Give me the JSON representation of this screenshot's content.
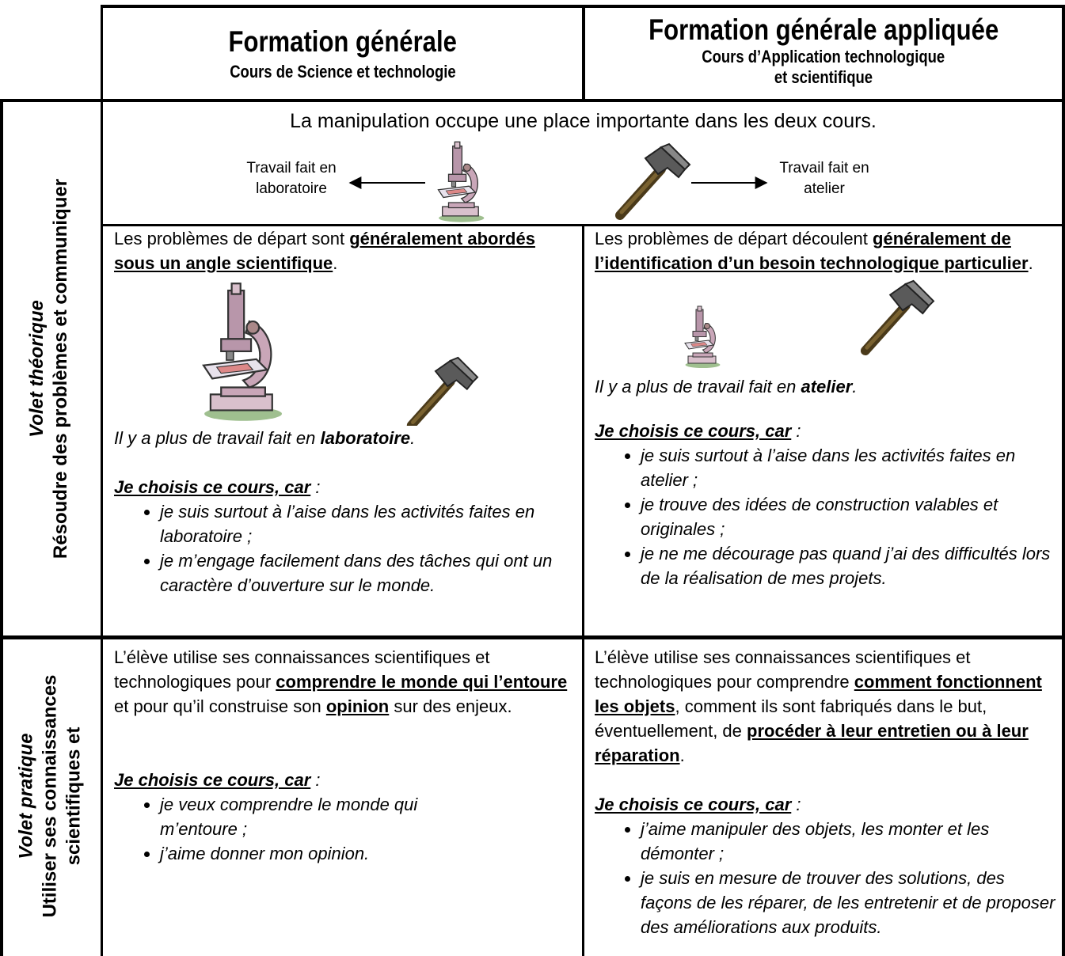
{
  "header": {
    "general": {
      "title": "Formation générale",
      "subtitle": "Cours de Science et technologie"
    },
    "applied": {
      "title": "Formation générale appliquée",
      "subtitle": [
        "Cours d’Application technologique",
        "et scientifique"
      ]
    }
  },
  "theory": {
    "label": {
      "title": "Volet théorique",
      "text": "Résoudre des problèmes et communiquer"
    },
    "banner": "La manipulation occupe une place importante dans les deux cours.",
    "lab_caption": [
      "Travail fait en",
      "laboratoire"
    ],
    "workshop_caption": [
      "Travail fait en",
      "atelier"
    ],
    "general": {
      "intro": [
        "Les problèmes de départ sont ",
        "généralement abordés sous un angle scientifique",
        "."
      ],
      "note": [
        "Il y a plus de travail fait en ",
        "laboratoire",
        "."
      ],
      "choice": [
        "Je choisis ce cours, car",
        " :"
      ],
      "bullets": [
        "je suis surtout à l’aise dans les activités faites en laboratoire ;",
        "je m’engage facilement dans des tâches qui ont un caractère d’ouverture sur le monde."
      ]
    },
    "applied": {
      "intro": [
        "Les problèmes de départ découlent ",
        "généralement de l’identification d’un besoin technologique particulier",
        "."
      ],
      "note": [
        "Il y a plus de travail fait en ",
        "atelier",
        "."
      ],
      "choice": [
        "Je choisis ce cours, car",
        " :"
      ],
      "bullets": [
        "je suis surtout à l’aise dans les activités faites en atelier ;",
        "je trouve des idées de construction valables et originales ;",
        "je ne me décourage pas quand j’ai des difficultés lors de la réalisation de mes projets."
      ]
    }
  },
  "practice": {
    "label": {
      "title": "Volet pratique",
      "text": [
        "Utiliser ses connaissances",
        "scientifiques et"
      ]
    },
    "general": {
      "intro": [
        "L’élève utilise ses connaissances scientifiques et technologiques pour ",
        "comprendre le monde qui l’entoure",
        " et pour qu’il construise son ",
        "opinion",
        " sur des enjeux."
      ],
      "choice": [
        "Je choisis ce cours, car",
        " :"
      ],
      "bullets": [
        "je veux comprendre le monde qui m’entoure ;",
        "j’aime donner mon opinion."
      ]
    },
    "applied": {
      "intro": [
        "L’élève utilise ses connaissances scientifiques et technologiques pour comprendre ",
        "comment fonctionnent les objets",
        ", comment ils sont fabriqués dans le but, éventuellement, de ",
        "procéder à leur entretien ou à leur réparation",
        "."
      ],
      "choice": [
        "Je choisis ce cours, car",
        " :"
      ],
      "bullets": [
        "j’aime manipuler des objets, les monter et les démonter ;",
        "je suis en mesure de trouver des solutions, des façons de les réparer, de les entretenir et de proposer des améliorations aux produits."
      ]
    }
  }
}
